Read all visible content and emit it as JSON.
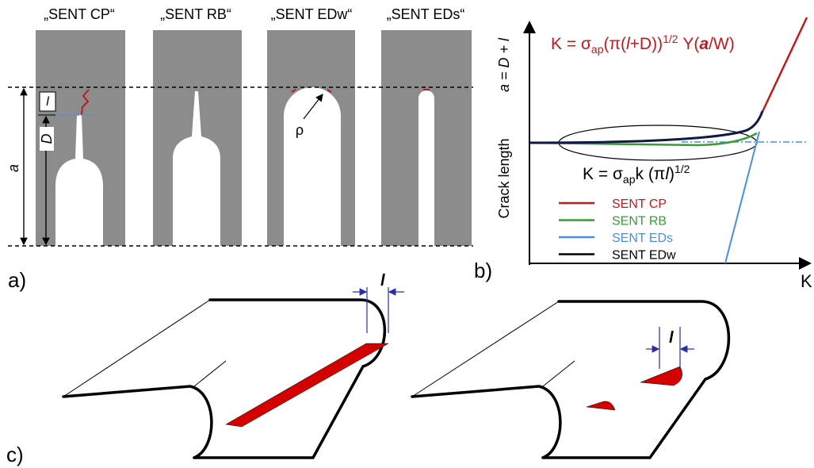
{
  "panel_a": {
    "label": "a)",
    "specimens": [
      "„SENT CP“",
      "„SENT RB“",
      "„SENT EDw“",
      "„SENT EDs“"
    ],
    "dim_a": "a",
    "dim_l": "l",
    "dim_D": "D",
    "dim_rho": "ρ"
  },
  "panel_b": {
    "label": "b)",
    "y_label": "Crack length",
    "y_label_right": "a = D + l",
    "x_label": "K",
    "formula_top": [
      "K = σ",
      "ap",
      "(π(",
      "l",
      "+D))",
      "1/2",
      " Y(",
      "a",
      "/W)"
    ],
    "formula_bottom": [
      "K = σ",
      "ap",
      "k (π",
      "l",
      ")",
      "1/2"
    ],
    "legend": [
      {
        "name": "SENT CP",
        "color": "#c0191e"
      },
      {
        "name": "SENT RB",
        "color": "#3a9a3a"
      },
      {
        "name": "SENT EDs",
        "color": "#4a8fdc"
      },
      {
        "name": "SENT EDw",
        "color": "#000000"
      }
    ]
  },
  "panel_c": {
    "label": "c)",
    "dim_left": "l",
    "dim_right": "l"
  }
}
